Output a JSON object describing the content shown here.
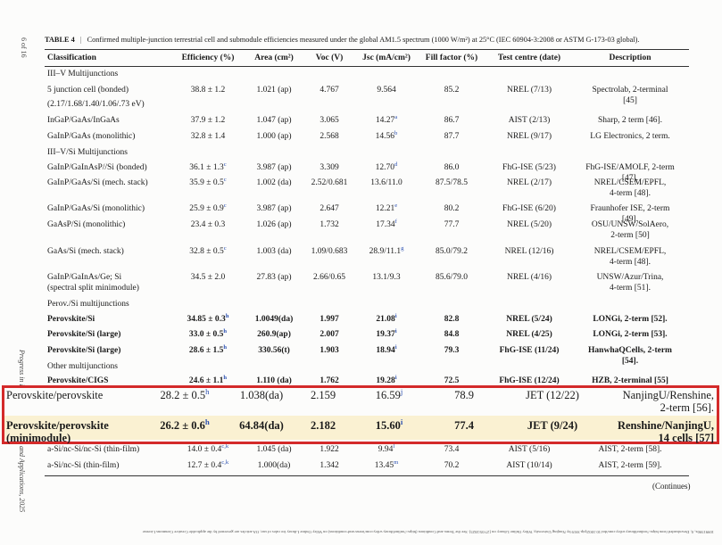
{
  "side": {
    "page": "6 of 16",
    "journal_top": "Progress in P",
    "journal_bottom": "and Applications, 2025"
  },
  "caption": {
    "label": "TABLE 4",
    "separator": "|",
    "text": "Confirmed multiple-junction terrestrial cell and submodule efficiencies measured under the global AM1.5 spectrum (1000 W/m²) at 25°C (IEC 60904-3:2008 or ASTM G-173-03 global)."
  },
  "table": {
    "headers": [
      "Classification",
      "Efficiency (%)",
      "Area (cm²)",
      "Voc (V)",
      "Jsc (mA/cm²)",
      "Fill factor (%)",
      "Test centre (date)",
      "Description"
    ],
    "rows": [
      {
        "section": "III–V Multijunctions"
      },
      {
        "cells": [
          "5 junction cell (bonded)",
          "38.8 ± 1.2",
          "1.021 (ap)",
          "4.767",
          "9.564",
          "85.2",
          "NREL (7/13)",
          "Spectrolab, 2-terminal [45]"
        ]
      },
      {
        "cells": [
          "(2.17/1.68/1.40/1.06/.73 eV)"
        ]
      },
      {
        "cells": [
          "InGaP/GaAs/InGaAs",
          "37.9 ± 1.2",
          "1.047 (ap)",
          "3.065",
          {
            "text": "14.27",
            "sup": "a"
          },
          "86.7",
          "AIST (2/13)",
          "Sharp, 2 term [46]."
        ]
      },
      {
        "cells": [
          "GaInP/GaAs (monolithic)",
          "32.8 ± 1.4",
          "1.000 (ap)",
          "2.568",
          {
            "text": "14.56",
            "sup": "b"
          },
          "87.7",
          "NREL (9/17)",
          "LG Electronics, 2 term."
        ]
      },
      {
        "section": "III–V/Si Multijunctions"
      },
      {
        "cells": [
          "GaInP/GaInAsP//Si (bonded)",
          {
            "text": "36.1 ± 1.3",
            "sup": "c"
          },
          "3.987 (ap)",
          "3.309",
          {
            "text": "12.70",
            "sup": "d"
          },
          "86.0",
          "FhG-ISE (5/23)",
          "FhG-ISE/AMOLF, 2-term [47]."
        ]
      },
      {
        "cells": [
          "GaInP/GaAs/Si (mech. stack)",
          {
            "text": "35.9 ± 0.5",
            "sup": "c"
          },
          "1.002 (da)",
          "2.52/0.681",
          "13.6/11.0",
          "87.5/78.5",
          "NREL (2/17)",
          "NREL/CSEM/EPFL,\n4-term [48]."
        ]
      },
      {
        "cells": [
          "GaInP/GaAs/Si (monolithic)",
          {
            "text": "25.9 ± 0.9",
            "sup": "c"
          },
          "3.987 (ap)",
          "2.647",
          {
            "text": "12.21",
            "sup": "e"
          },
          "80.2",
          "FhG-ISE (6/20)",
          "Fraunhofer ISE, 2-term [49]."
        ]
      },
      {
        "cells": [
          "GaAsP/Si (monolithic)",
          "23.4 ± 0.3",
          "1.026 (ap)",
          "1.732",
          {
            "text": "17.34",
            "sup": "f"
          },
          "77.7",
          "NREL (5/20)",
          "OSU/UNSW/SolAero,\n2-term [50]"
        ]
      },
      {
        "cells": [
          "GaAs/Si (mech. stack)",
          {
            "text": "32.8 ± 0.5",
            "sup": "c"
          },
          "1.003 (da)",
          "1.09/0.683",
          {
            "text": "28.9/11.1",
            "sup": "g"
          },
          "85.0/79.2",
          "NREL (12/16)",
          "NREL/CSEM/EPFL,\n4-term [48]."
        ]
      },
      {
        "cells": [
          "GaInP/GaInAs/Ge; Si\n(spectral split minimodule)",
          "34.5 ± 2.0",
          "27.83 (ap)",
          "2.66/0.65",
          "13.1/9.3",
          "85.6/79.0",
          "NREL (4/16)",
          "UNSW/Azur/Trina,\n4-term [51]."
        ]
      },
      {
        "section": "Perov./Si multijunctions"
      },
      {
        "bold": true,
        "cells": [
          "Perovskite/Si",
          {
            "text": "34.85 ± 0.3",
            "sup": "h"
          },
          "1.0049(da)",
          "1.997",
          {
            "text": "21.08",
            "sup": "i"
          },
          "82.8",
          "NREL (5/24)",
          "LONGi, 2-term [52]."
        ]
      },
      {
        "bold": true,
        "cells": [
          "Perovskite/Si (large)",
          {
            "text": "33.0 ± 0.5",
            "sup": "h"
          },
          "260.9(ap)",
          "2.007",
          {
            "text": "19.37",
            "sup": "i"
          },
          "84.8",
          "NREL (4/25)",
          "LONGi, 2-term [53]."
        ]
      },
      {
        "bold": true,
        "cells": [
          "Perovskite/Si (large)",
          {
            "text": "28.6 ± 1.5",
            "sup": "h"
          },
          "330.56(t)",
          "1.903",
          {
            "text": "18.94",
            "sup": "i"
          },
          "79.3",
          "FhG-ISE (11/24)",
          "HanwhaQCells, 2-term [54]."
        ]
      },
      {
        "section": "Other multijunctions"
      },
      {
        "bold": true,
        "cells": [
          "Perovskite/CIGS",
          {
            "text": "24.6 ± 1.1",
            "sup": "h"
          },
          "1.110 (da)",
          "1.762",
          {
            "text": "19.28",
            "sup": "i"
          },
          "72.5",
          "FhG-ISE (12/24)",
          "HZB, 2-terminal [55]"
        ]
      },
      {
        "highlight": true,
        "cells": [
          "Perovskite/perovskite",
          {
            "text": "28.2 ± 0.5",
            "sup": "h"
          },
          "1.038(da)",
          "2.159",
          {
            "text": "16.59",
            "sup": "j"
          },
          "78.9",
          "JET (12/22)",
          "NanjingU/Renshine,\n2-term [56]."
        ]
      },
      {
        "highlight": true,
        "bold": true,
        "cells": [
          "Perovskite/perovskite\n(minimodule)",
          {
            "text": "26.2 ± 0.6",
            "sup": "h"
          },
          "64.84(da)",
          "2.182",
          {
            "text": "15.60",
            "sup": "i"
          },
          "77.4",
          "JET (9/24)",
          "Renshine/NanjingU,\n14 cells [57]"
        ]
      },
      {
        "cells": [
          "a-Si/nc-Si/nc-Si (thin-film)",
          {
            "text": "14.0 ± 0.4",
            "sup": "c,k"
          },
          "1.045 (da)",
          "1.922",
          {
            "text": "9.94",
            "sup": "l"
          },
          "73.4",
          "AIST (5/16)",
          "AIST, 2-term [58]."
        ]
      },
      {
        "cells": [
          "a-Si/nc-Si (thin-film)",
          {
            "text": "12.7 ± 0.4",
            "sup": "c,k"
          },
          "1.000(da)",
          "1.342",
          {
            "text": "13.45",
            "sup": "m"
          },
          "70.2",
          "AIST (10/14)",
          "AIST, 2-term [59]."
        ]
      }
    ]
  },
  "continues": "(Continues)",
  "footer": "10991590x, 0, Downloaded from https://onlinelibrary.wiley.com/doi/10.1002/pip.3919 by Nanjing University, Wiley Online Library on [27/05/2025]. See the Terms and Conditions (https://onlinelibrary.wiley.com/terms-and-conditions) on Wiley Online Library for rules of use; OA articles are governed by the applicable Creative Commons License"
}
